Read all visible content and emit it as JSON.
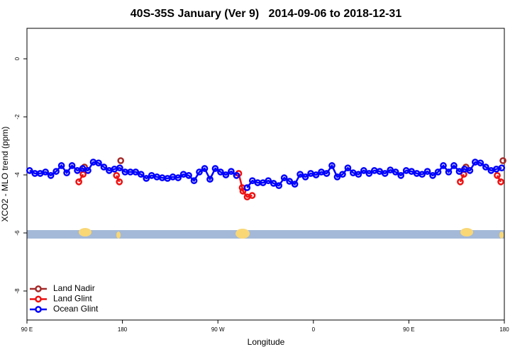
{
  "chart_data": {
    "type": "line",
    "title": "40S-35S January (Ver 9)   2014-09-06 to 2018-12-31",
    "x_label": "Longitude",
    "y_label": "XCO2 - MLO trend (ppm)",
    "xlim": [
      90,
      540
    ],
    "ylim": [
      -9,
      1.05
    ],
    "xticks": [
      {
        "value": 90,
        "label": "90 E"
      },
      180,
      {
        "value": 270,
        "label": "90 W"
      },
      {
        "value": 360,
        "label": "0"
      },
      {
        "value": 450,
        "label": "90 E"
      },
      {
        "value": 540,
        "label": "180"
      }
    ],
    "yticks": [
      0,
      -2,
      -4,
      -6,
      -8
    ],
    "legend": "bottom-left",
    "series": [
      {
        "name": "Land Nadir",
        "color": "#a52a2a",
        "x": [
          144.2,
          178.4,
          503.8,
          538.7
        ],
        "values": [
          -3.73,
          -3.51,
          -3.73,
          -3.51
        ]
      },
      {
        "name": "Land Glint",
        "color": "#ee1111",
        "x": [
          138.9,
          142.9,
          174.4,
          177.1,
          289.6,
          292.9,
          293.6,
          297.6,
          302.3,
          498.5,
          501.8,
          533.3,
          536.7
        ],
        "values": [
          -4.24,
          -3.98,
          -4.02,
          -4.24,
          -3.95,
          -4.44,
          -4.56,
          -4.76,
          -4.71,
          -4.24,
          -3.98,
          -4.02,
          -4.24
        ]
      },
      {
        "name": "Ocean Glint",
        "color": "#0000ff",
        "x": [
          92.5,
          97.5,
          102.5,
          107.5,
          112.5,
          117.5,
          122.5,
          127.5,
          132.5,
          137.5,
          142.5,
          147.5,
          152.5,
          157.5,
          162.5,
          167.5,
          172.5,
          177.5,
          182.5,
          187.5,
          192.5,
          197.5,
          202.5,
          207.5,
          212.5,
          217.5,
          222.5,
          227.5,
          232.5,
          237.5,
          242.5,
          247.5,
          252.5,
          257.5,
          262.5,
          267.5,
          272.5,
          277.5,
          282.5,
          287.5,
          292.5,
          297.5,
          302.5,
          307.5,
          312.5,
          317.5,
          322.5,
          327.5,
          332.5,
          337.5,
          342.5,
          347.5,
          352.5,
          357.5,
          362.5,
          367.5,
          372.5,
          377.5,
          382.5,
          387.5,
          392.5,
          397.5,
          402.5,
          407.5,
          412.5,
          417.5,
          422.5,
          427.5,
          432.5,
          437.5,
          442.5,
          447.5,
          452.5,
          457.5,
          462.5,
          467.5,
          472.5,
          477.5,
          482.5,
          487.5,
          492.5,
          497.5,
          502.5,
          507.5,
          512.5,
          517.5,
          522.5,
          527.5,
          532.5,
          537.5
        ],
        "values": [
          -3.85,
          -3.95,
          -3.95,
          -3.9,
          -4.02,
          -3.88,
          -3.68,
          -3.93,
          -3.68,
          -3.85,
          -3.78,
          -3.85,
          -3.56,
          -3.59,
          -3.73,
          -3.85,
          -3.8,
          -3.76,
          -3.9,
          -3.9,
          -3.9,
          -3.98,
          -4.12,
          -4.02,
          -4.07,
          -4.1,
          -4.12,
          -4.07,
          -4.1,
          -3.98,
          -4.02,
          -4.2,
          -3.9,
          -3.78,
          -4.15,
          -3.78,
          -3.9,
          -4.0,
          -3.88,
          -4.02,
          null,
          -4.44,
          -4.2,
          -4.27,
          -4.27,
          -4.2,
          -4.29,
          -4.37,
          -4.1,
          -4.22,
          -4.32,
          -3.98,
          -4.07,
          -3.95,
          -4.0,
          -3.9,
          -3.95,
          -3.68,
          -4.07,
          -3.98,
          -3.76,
          -3.93,
          -3.98,
          -3.85,
          -3.95,
          -3.85,
          -3.88,
          -3.95,
          -3.83,
          -3.9,
          -4.02,
          -3.85,
          -3.88,
          -3.95,
          -3.98,
          -3.88,
          -4.02,
          -3.9,
          -3.68,
          -3.9,
          -3.68,
          -3.88,
          -3.8,
          -3.85,
          -3.56,
          -3.59,
          -3.73,
          -3.85,
          -3.8,
          -3.76
        ]
      }
    ]
  }
}
